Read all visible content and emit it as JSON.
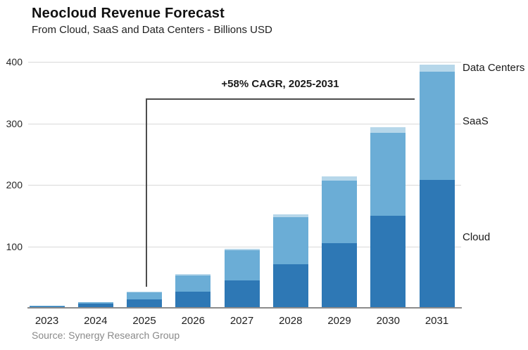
{
  "header": {
    "title": "Neocloud Revenue Forecast",
    "subtitle": "From Cloud, SaaS and Data Centers - Billions USD"
  },
  "annotation": {
    "label": "+58% CAGR, 2025-2031"
  },
  "series_labels": {
    "data_centers": "Data Centers",
    "saas": "SaaS",
    "cloud": "Cloud"
  },
  "source": {
    "text": "Source: Synergy Research Group"
  },
  "colors": {
    "cloud": "#2e78b5",
    "saas": "#6badd6",
    "data_centers": "#b6d7ea",
    "gridline": "#d9d9d9",
    "axis": "#8c8c8c",
    "bracket": "#4d4d4d"
  },
  "chart_data": {
    "type": "bar",
    "stacked": true,
    "title": "Neocloud Revenue Forecast",
    "subtitle": "From Cloud, SaaS and Data Centers - Billions USD",
    "categories": [
      "2023",
      "2024",
      "2025",
      "2026",
      "2027",
      "2028",
      "2029",
      "2030",
      "2031"
    ],
    "series": [
      {
        "name": "Cloud",
        "color": "#2e78b5",
        "values": [
          2.5,
          7,
          14,
          26,
          45,
          71,
          105,
          150,
          208
        ]
      },
      {
        "name": "SaaS",
        "color": "#6badd6",
        "values": [
          0.5,
          2,
          11,
          27,
          49,
          76,
          102,
          135,
          176
        ]
      },
      {
        "name": "Data Centers",
        "color": "#b6d7ea",
        "values": [
          0,
          0,
          1,
          2,
          2,
          5,
          7,
          9,
          11
        ]
      }
    ],
    "totals": [
      3,
      9,
      26,
      55,
      96,
      152,
      214,
      294,
      395
    ],
    "ylabel": "Billions USD",
    "ylim": [
      0,
      400
    ],
    "yticks": [
      100,
      200,
      300,
      400
    ],
    "grid": true,
    "legend_position": "right-inline-labels",
    "annotation": "+58% CAGR, 2025-2031",
    "annotation_span": [
      "2025",
      "2031"
    ]
  }
}
